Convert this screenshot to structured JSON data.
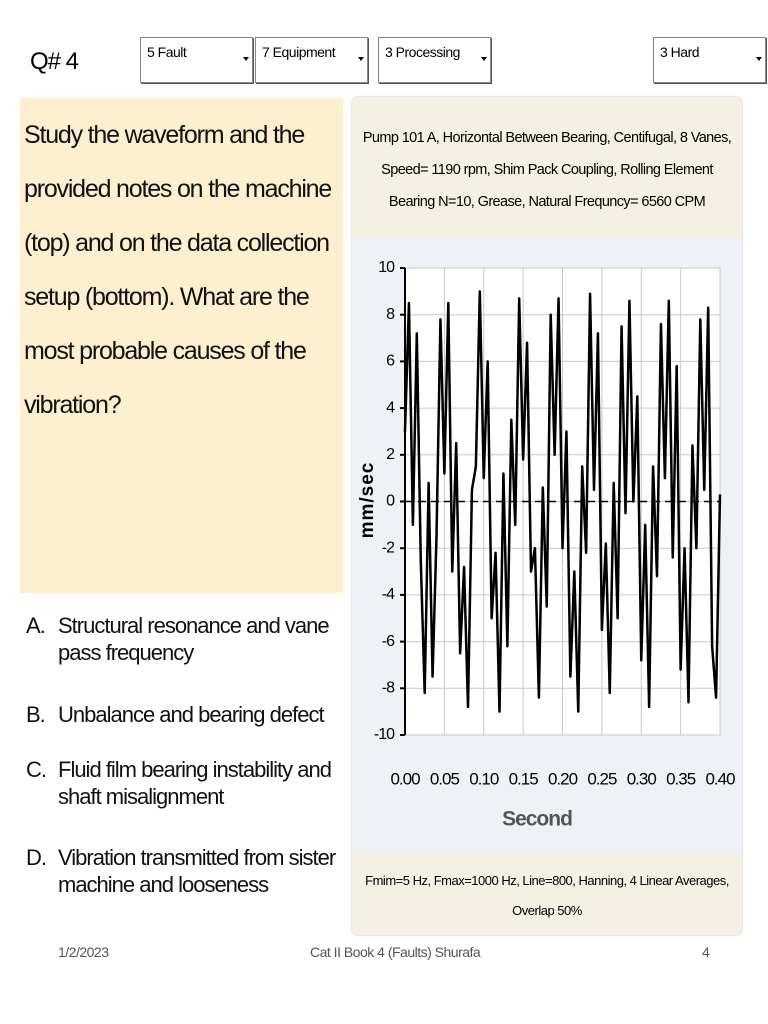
{
  "header": {
    "question": "Q# 4",
    "dropdowns": [
      "5 Fault",
      "7 Equipment",
      "3 Processing",
      "3 Hard"
    ]
  },
  "question": "Study the waveform and the provided notes on the machine (top) and on the data collection setup (bottom). What are the most probable causes of the vibration?",
  "options": [
    {
      "letter": "A.",
      "text": "Structural resonance and vane pass frequency"
    },
    {
      "letter": "B.",
      "text": "Unbalance and bearing defect"
    },
    {
      "letter": "C.",
      "text": "Fluid film bearing instability and shaft misalignment"
    },
    {
      "letter": "D.",
      "text": "Vibration transmitted from sister machine and looseness"
    }
  ],
  "chart_data": {
    "type": "line",
    "title": "Pump 101 A, Horizontal Between Bearing, Centifugal, 8 Vanes, Speed= 1190 rpm, Shim Pack Coupling, Rolling Element Bearing N=10, Grease,  Natural Frequncy= 6560 CPM",
    "footnote": "Fmim=5 Hz, Fmax=1000 Hz, Line=800, Hanning, 4 Linear Averages, Overlap 50%",
    "xlabel": "Second",
    "ylabel": "mm/sec",
    "x": [
      0,
      0.005,
      0.01,
      0.015,
      0.02,
      0.025,
      0.03,
      0.035,
      0.04,
      0.045,
      0.05,
      0.055,
      0.06,
      0.065,
      0.07,
      0.075,
      0.08,
      0.085,
      0.09,
      0.095,
      0.1,
      0.105,
      0.11,
      0.115,
      0.12,
      0.125,
      0.13,
      0.135,
      0.14,
      0.145,
      0.15,
      0.155,
      0.16,
      0.165,
      0.17,
      0.175,
      0.18,
      0.185,
      0.19,
      0.195,
      0.2,
      0.205,
      0.21,
      0.215,
      0.22,
      0.225,
      0.23,
      0.235,
      0.24,
      0.245,
      0.25,
      0.255,
      0.26,
      0.265,
      0.27,
      0.275,
      0.28,
      0.285,
      0.29,
      0.295,
      0.3,
      0.305,
      0.31,
      0.315,
      0.32,
      0.325,
      0.33,
      0.335,
      0.34,
      0.345,
      0.35,
      0.355,
      0.36,
      0.365,
      0.37,
      0.375,
      0.38,
      0.385,
      0.39,
      0.395,
      0.4
    ],
    "series": [
      {
        "color": "#000000",
        "values": [
          3,
          8.5,
          -1,
          7.2,
          -2.5,
          -8.2,
          0.8,
          -7.5,
          -1.5,
          7.8,
          1.2,
          8.5,
          -3,
          2.5,
          -6.5,
          -2.8,
          -8.8,
          0.5,
          1.5,
          9,
          1,
          6,
          -5,
          -2.2,
          -9,
          1.2,
          -6.2,
          3.5,
          -1,
          8.7,
          1.8,
          6.8,
          -3,
          -2,
          -8.4,
          0.6,
          -4.5,
          8,
          2,
          8.7,
          -2,
          3,
          -7.5,
          -3,
          -9,
          1.5,
          -2.2,
          8.9,
          0.5,
          7.2,
          -5.5,
          -1.8,
          -8.2,
          0.8,
          -5,
          7.5,
          -0.5,
          8.6,
          0,
          4.5,
          -6.8,
          -1,
          -8.8,
          1.5,
          -3.2,
          7.6,
          1,
          8.6,
          -2.4,
          5.8,
          -7.2,
          -2,
          -8.6,
          2.4,
          -2,
          7.8,
          0.5,
          8.3,
          -6.2,
          -8.4,
          0.3
        ]
      }
    ],
    "xlim": [
      0,
      0.4
    ],
    "ylim": [
      -10,
      10
    ],
    "xticks": [
      {
        "value": 0,
        "label": "0.00"
      },
      0.05,
      {
        "value": 0.1,
        "label": "0.10"
      },
      0.15,
      {
        "value": 0.2,
        "label": "0.20"
      },
      0.25,
      {
        "value": 0.3,
        "label": "0.30"
      },
      0.35,
      {
        "value": 0.4,
        "label": "0.40"
      }
    ],
    "yticks": [
      -10,
      -8,
      -6,
      -4,
      -2,
      0,
      2,
      4,
      6,
      8,
      10
    ],
    "grid": true
  },
  "footer": {
    "date": "1/2/2023",
    "center": "Cat II Book 4 (Faults) Shurafa",
    "page": "4"
  }
}
